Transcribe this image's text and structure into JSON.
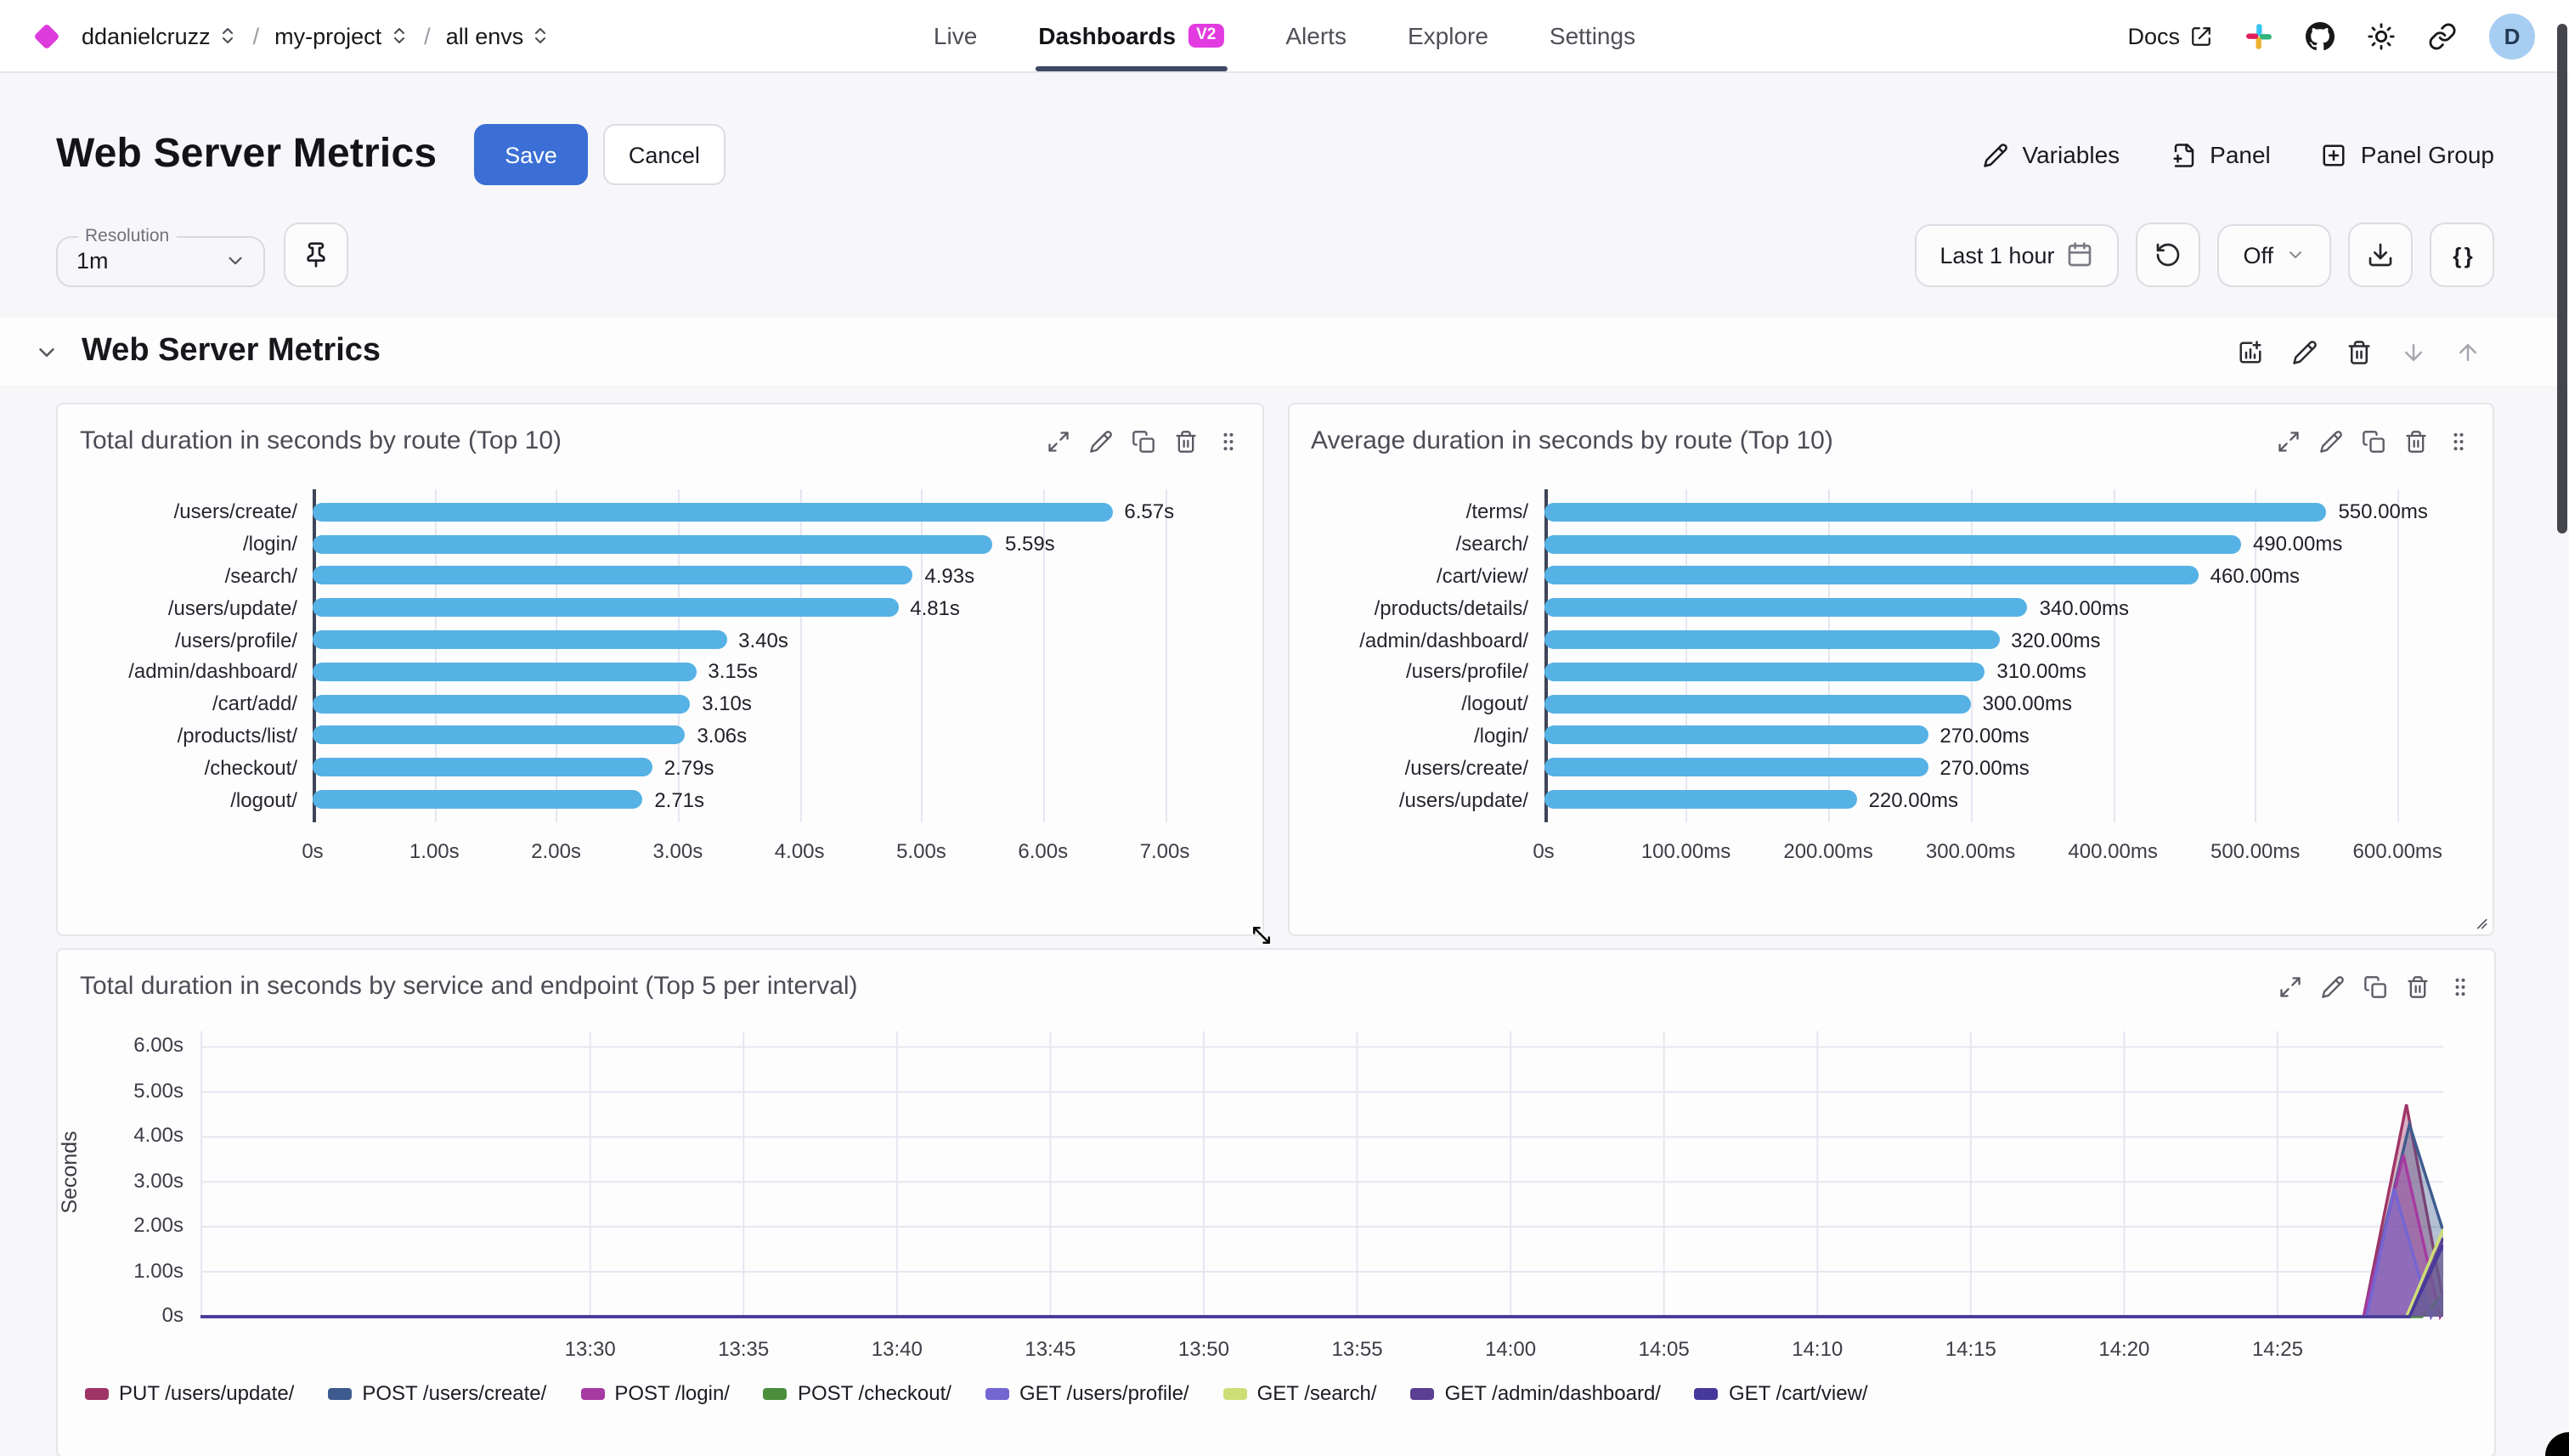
{
  "header": {
    "breadcrumb": {
      "org": "ddanielcruzz",
      "project": "my-project",
      "env": "all envs",
      "separator": "/"
    },
    "nav": {
      "items": [
        {
          "label": "Live"
        },
        {
          "label": "Dashboards",
          "badge": "V2",
          "active": true
        },
        {
          "label": "Alerts"
        },
        {
          "label": "Explore"
        },
        {
          "label": "Settings"
        }
      ]
    },
    "right": {
      "docs_label": "Docs",
      "avatar_initial": "D"
    }
  },
  "title_bar": {
    "title": "Web Server Metrics",
    "save_label": "Save",
    "cancel_label": "Cancel",
    "variables_label": "Variables",
    "panel_label": "Panel",
    "panel_group_label": "Panel Group"
  },
  "toolbar": {
    "resolution_label": "Resolution",
    "resolution_value": "1m",
    "time_range_label": "Last 1 hour",
    "refresh_off_label": "Off",
    "braces_label": "{ }"
  },
  "section": {
    "title": "Web Server Metrics"
  },
  "colors": {
    "accent_blue": "#3b6fd6",
    "logo_magenta": "#de3bdc",
    "badge_magenta": "#e23be0",
    "nav_underline": "#3e4a63",
    "bar_blue": "#56b2e4",
    "avatar_bg": "#a8cdf2",
    "grid_line": "#e6e6f0",
    "axis_dark": "#3e4457"
  },
  "chart_data": [
    {
      "type": "bar",
      "orientation": "horizontal",
      "title": "Total duration in seconds by route (Top 10)",
      "unit": "s",
      "categories": [
        "/users/create/",
        "/login/",
        "/search/",
        "/users/update/",
        "/users/profile/",
        "/admin/dashboard/",
        "/cart/add/",
        "/products/list/",
        "/checkout/",
        "/logout/"
      ],
      "values": [
        6.57,
        5.59,
        4.93,
        4.81,
        3.4,
        3.15,
        3.1,
        3.06,
        2.79,
        2.71
      ],
      "value_labels": [
        "6.57s",
        "5.59s",
        "4.93s",
        "4.81s",
        "3.40s",
        "3.15s",
        "3.10s",
        "3.06s",
        "2.79s",
        "2.71s"
      ],
      "xlim": [
        0,
        7.6
      ],
      "x_ticks": [
        {
          "v": 0,
          "label": "0s"
        },
        {
          "v": 1,
          "label": "1.00s"
        },
        {
          "v": 2,
          "label": "2.00s"
        },
        {
          "v": 3,
          "label": "3.00s"
        },
        {
          "v": 4,
          "label": "4.00s"
        },
        {
          "v": 5,
          "label": "5.00s"
        },
        {
          "v": 6,
          "label": "6.00s"
        },
        {
          "v": 7,
          "label": "7.00s"
        }
      ],
      "bar_color": "#56b2e4"
    },
    {
      "type": "bar",
      "orientation": "horizontal",
      "title": "Average duration in seconds by route (Top 10)",
      "unit": "ms",
      "categories": [
        "/terms/",
        "/search/",
        "/cart/view/",
        "/products/details/",
        "/admin/dashboard/",
        "/users/profile/",
        "/logout/",
        "/login/",
        "/users/create/",
        "/users/update/"
      ],
      "values": [
        550,
        490,
        460,
        340,
        320,
        310,
        300,
        270,
        270,
        220
      ],
      "value_labels": [
        "550.00ms",
        "490.00ms",
        "460.00ms",
        "340.00ms",
        "320.00ms",
        "310.00ms",
        "300.00ms",
        "270.00ms",
        "270.00ms",
        "220.00ms"
      ],
      "xlim": [
        0,
        650
      ],
      "x_ticks": [
        {
          "v": 0,
          "label": "0s"
        },
        {
          "v": 100,
          "label": "100.00ms"
        },
        {
          "v": 200,
          "label": "200.00ms"
        },
        {
          "v": 300,
          "label": "300.00ms"
        },
        {
          "v": 400,
          "label": "400.00ms"
        },
        {
          "v": 500,
          "label": "500.00ms"
        },
        {
          "v": 600,
          "label": "600.00ms"
        }
      ],
      "bar_color": "#56b2e4"
    },
    {
      "type": "area",
      "title": "Total duration in seconds by service and endpoint (Top 5 per interval)",
      "ylabel": "Seconds",
      "ylim": [
        0,
        6.35
      ],
      "y_ticks": [
        {
          "v": 0,
          "label": "0s"
        },
        {
          "v": 1,
          "label": "1.00s"
        },
        {
          "v": 2,
          "label": "2.00s"
        },
        {
          "v": 3,
          "label": "3.00s"
        },
        {
          "v": 4,
          "label": "4.00s"
        },
        {
          "v": 5,
          "label": "5.00s"
        },
        {
          "v": 6,
          "label": "6.00s"
        }
      ],
      "t_max": 73.1,
      "x_ticks": [
        {
          "t": 12.7,
          "label": "13:30"
        },
        {
          "t": 17.7,
          "label": "13:35"
        },
        {
          "t": 22.7,
          "label": "13:40"
        },
        {
          "t": 27.7,
          "label": "13:45"
        },
        {
          "t": 32.7,
          "label": "13:50"
        },
        {
          "t": 37.7,
          "label": "13:55"
        },
        {
          "t": 42.7,
          "label": "14:00"
        },
        {
          "t": 47.7,
          "label": "14:05"
        },
        {
          "t": 52.7,
          "label": "14:10"
        },
        {
          "t": 57.7,
          "label": "14:15"
        },
        {
          "t": 62.7,
          "label": "14:20"
        },
        {
          "t": 67.7,
          "label": "14:25"
        }
      ],
      "series": [
        {
          "name": "PUT /users/update/",
          "color": "#9f3566",
          "points": [
            [
              0,
              0
            ],
            [
              70.5,
              0
            ],
            [
              71.9,
              4.72
            ],
            [
              73.1,
              0.35
            ]
          ]
        },
        {
          "name": "POST /users/create/",
          "color": "#3d5b8e",
          "points": [
            [
              0,
              0
            ],
            [
              70.5,
              0
            ],
            [
              72.0,
              4.28
            ],
            [
              73.1,
              1.9
            ]
          ]
        },
        {
          "name": "POST /login/",
          "color": "#a63aa2",
          "points": [
            [
              0,
              0
            ],
            [
              70.5,
              0
            ],
            [
              71.8,
              3.6
            ],
            [
              73.0,
              0
            ],
            [
              73.1,
              0.1
            ]
          ]
        },
        {
          "name": "POST /checkout/",
          "color": "#4b8e3c",
          "points": [
            [
              0,
              0
            ],
            [
              72.4,
              0
            ],
            [
              73.1,
              0.5
            ]
          ]
        },
        {
          "name": "GET /users/profile/",
          "color": "#7466d2",
          "points": [
            [
              0,
              0
            ],
            [
              70.6,
              0
            ],
            [
              71.5,
              2.85
            ],
            [
              72.7,
              0
            ],
            [
              73.1,
              0.5
            ]
          ]
        },
        {
          "name": "GET /search/",
          "color": "#cede77",
          "points": [
            [
              0,
              0
            ],
            [
              71.9,
              0
            ],
            [
              73.1,
              1.95
            ]
          ]
        },
        {
          "name": "GET /admin/dashboard/",
          "color": "#5b3f93",
          "points": [
            [
              0,
              0
            ],
            [
              72.0,
              0
            ],
            [
              73.1,
              1.75
            ]
          ]
        },
        {
          "name": "GET /cart/view/",
          "color": "#46399b",
          "points": [
            [
              0,
              0
            ],
            [
              72.0,
              0
            ],
            [
              73.1,
              1.6
            ]
          ]
        }
      ]
    }
  ]
}
